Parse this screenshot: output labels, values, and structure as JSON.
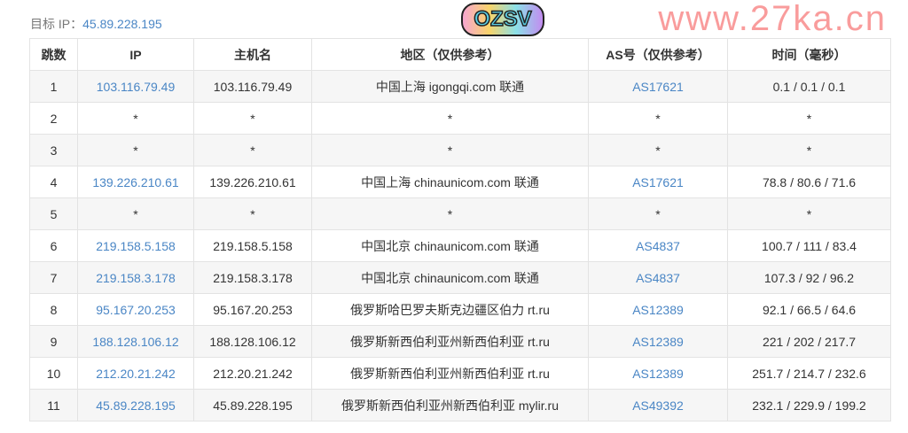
{
  "target": {
    "label": "目标 IP：",
    "ip": "45.89.228.195"
  },
  "columns": [
    "跳数",
    "IP",
    "主机名",
    "地区（仅供参考）",
    "AS号（仅供参考）",
    "时间（毫秒）"
  ],
  "rows": [
    {
      "hop": "1",
      "ip": "103.116.79.49",
      "host": "103.116.79.49",
      "region": "中国上海 igongqi.com 联通",
      "as": "AS17621",
      "time": "0.1 / 0.1 / 0.1"
    },
    {
      "hop": "2",
      "ip": "*",
      "host": "*",
      "region": "*",
      "as": "*",
      "time": "*"
    },
    {
      "hop": "3",
      "ip": "*",
      "host": "*",
      "region": "*",
      "as": "*",
      "time": "*"
    },
    {
      "hop": "4",
      "ip": "139.226.210.61",
      "host": "139.226.210.61",
      "region": "中国上海 chinaunicom.com 联通",
      "as": "AS17621",
      "time": "78.8 / 80.6 / 71.6"
    },
    {
      "hop": "5",
      "ip": "*",
      "host": "*",
      "region": "*",
      "as": "*",
      "time": "*"
    },
    {
      "hop": "6",
      "ip": "219.158.5.158",
      "host": "219.158.5.158",
      "region": "中国北京 chinaunicom.com 联通",
      "as": "AS4837",
      "time": "100.7 / 111 / 83.4"
    },
    {
      "hop": "7",
      "ip": "219.158.3.178",
      "host": "219.158.3.178",
      "region": "中国北京 chinaunicom.com 联通",
      "as": "AS4837",
      "time": "107.3 / 92 / 96.2"
    },
    {
      "hop": "8",
      "ip": "95.167.20.253",
      "host": "95.167.20.253",
      "region": "俄罗斯哈巴罗夫斯克边疆区伯力 rt.ru",
      "as": "AS12389",
      "time": "92.1 / 66.5 / 64.6"
    },
    {
      "hop": "9",
      "ip": "188.128.106.12",
      "host": "188.128.106.12",
      "region": "俄罗斯新西伯利亚州新西伯利亚 rt.ru",
      "as": "AS12389",
      "time": "221 / 202 / 217.7"
    },
    {
      "hop": "10",
      "ip": "212.20.21.242",
      "host": "212.20.21.242",
      "region": "俄罗斯新西伯利亚州新西伯利亚 rt.ru",
      "as": "AS12389",
      "time": "251.7 / 214.7 / 232.6"
    },
    {
      "hop": "11",
      "ip": "45.89.228.195",
      "host": "45.89.228.195",
      "region": "俄罗斯新西伯利亚州新西伯利亚 mylir.ru",
      "as": "AS49392",
      "time": "232.1 / 229.9 / 199.2"
    }
  ],
  "watermark": "www.27ka.cn",
  "sticker_logo": "OZSV",
  "colors": {
    "link": "#4a86c5",
    "watermark": "#f55a5a",
    "stripe": "#f6f6f6"
  }
}
